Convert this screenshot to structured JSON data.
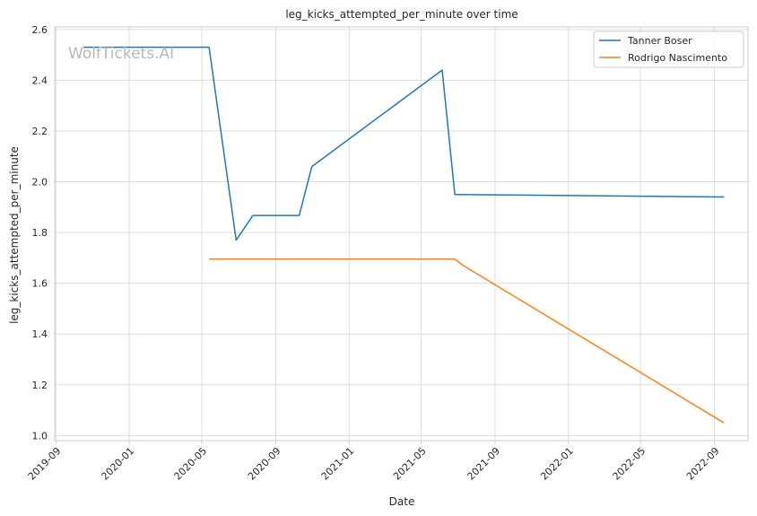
{
  "chart_data": {
    "type": "line",
    "title": "leg_kicks_attempted_per_minute over time",
    "xlabel": "Date",
    "ylabel": "leg_kicks_attempted_per_minute",
    "ylim": [
      0.98,
      2.61
    ],
    "xlim": [
      "2019-08-30",
      "2022-10-27"
    ],
    "yticks": [
      1.0,
      1.2,
      1.4,
      1.6,
      1.8,
      2.0,
      2.2,
      2.4,
      2.6
    ],
    "ytick_labels": [
      "1.0",
      "1.2",
      "1.4",
      "1.6",
      "1.8",
      "2.0",
      "2.2",
      "2.4",
      "2.6"
    ],
    "xticks": [
      "2019-09-01",
      "2020-01-01",
      "2020-05-01",
      "2020-09-01",
      "2021-01-01",
      "2021-05-01",
      "2021-09-01",
      "2022-01-01",
      "2022-05-01",
      "2022-09-01"
    ],
    "xtick_labels": [
      "2019-09",
      "2020-01",
      "2020-05",
      "2020-09",
      "2021-01",
      "2021-05",
      "2021-09",
      "2022-01",
      "2022-05",
      "2022-09"
    ],
    "grid": true,
    "legend": "top-right",
    "watermark": "WolfTickets.AI",
    "series": [
      {
        "name": "Tanner Boser",
        "color": "#1f77b4",
        "points": [
          {
            "x": "2019-10-17",
            "y": 2.53
          },
          {
            "x": "2020-05-13",
            "y": 2.53
          },
          {
            "x": "2020-06-27",
            "y": 1.77
          },
          {
            "x": "2020-07-25",
            "y": 1.867
          },
          {
            "x": "2020-10-10",
            "y": 1.867
          },
          {
            "x": "2020-10-31",
            "y": 2.06
          },
          {
            "x": "2021-06-05",
            "y": 2.44
          },
          {
            "x": "2021-06-26",
            "y": 1.95
          },
          {
            "x": "2022-09-17",
            "y": 1.94
          }
        ]
      },
      {
        "name": "Rodrigo Nascimento",
        "color": "#ff7f0e",
        "points": [
          {
            "x": "2020-05-13",
            "y": 1.695
          },
          {
            "x": "2021-06-26",
            "y": 1.695
          },
          {
            "x": "2021-07-10",
            "y": 1.67
          },
          {
            "x": "2022-09-17",
            "y": 1.05
          }
        ]
      }
    ]
  }
}
